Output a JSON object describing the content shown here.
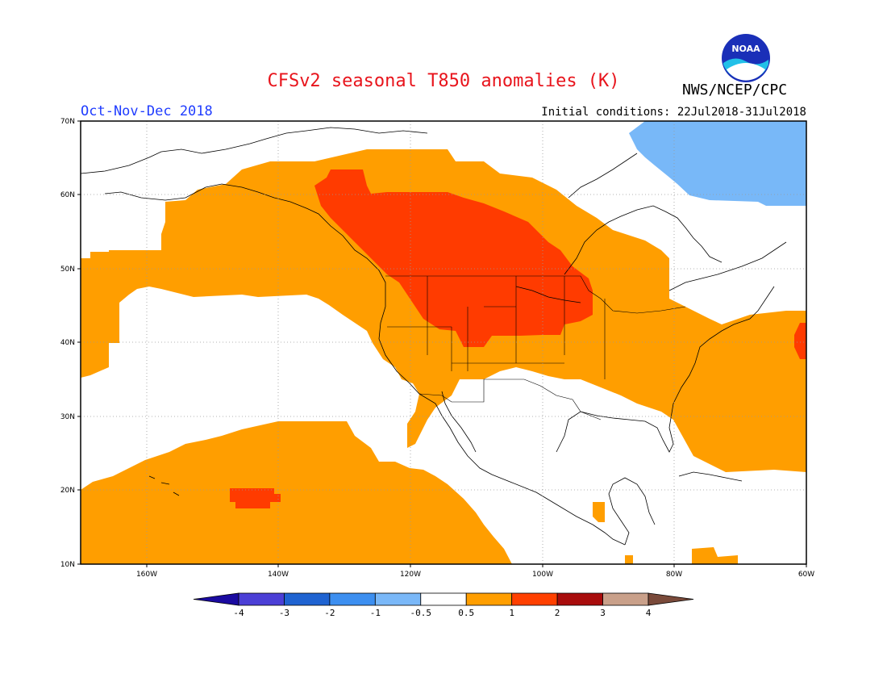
{
  "title": "CFSv2 seasonal T850 anomalies (K)",
  "period": "Oct-Nov-Dec 2018",
  "initial_conditions": "Initial conditions: 22Jul2018-31Jul2018",
  "agency": "NWS/NCEP/CPC",
  "logo_text": "NOAA",
  "colors": {
    "title": "#e8141c",
    "period": "#1f3cff",
    "pos_0_5_1": "#ff9e00",
    "pos_1_2": "#ff3b00",
    "neg_0_5_1": "#78b8f8"
  },
  "map": {
    "lon_range": [
      -170,
      -60
    ],
    "lat_range": [
      10,
      70
    ],
    "lat_labels": [
      "70N",
      "60N",
      "50N",
      "40N",
      "30N",
      "20N",
      "10N"
    ],
    "lon_labels": [
      "160W",
      "140W",
      "120W",
      "100W",
      "80W",
      "60W"
    ]
  },
  "colorbar": {
    "colors": [
      "#1a0aa0",
      "#4b3fd6",
      "#1f63d1",
      "#3d8ff0",
      "#7ab8f8",
      "#ffffff",
      "#ff9e00",
      "#ff4000",
      "#a80c0c",
      "#c9a08a",
      "#7a4a3a"
    ],
    "labels": [
      "-4",
      "-3",
      "-2",
      "-1",
      "-0.5",
      "0.5",
      "1",
      "2",
      "3",
      "4"
    ]
  }
}
